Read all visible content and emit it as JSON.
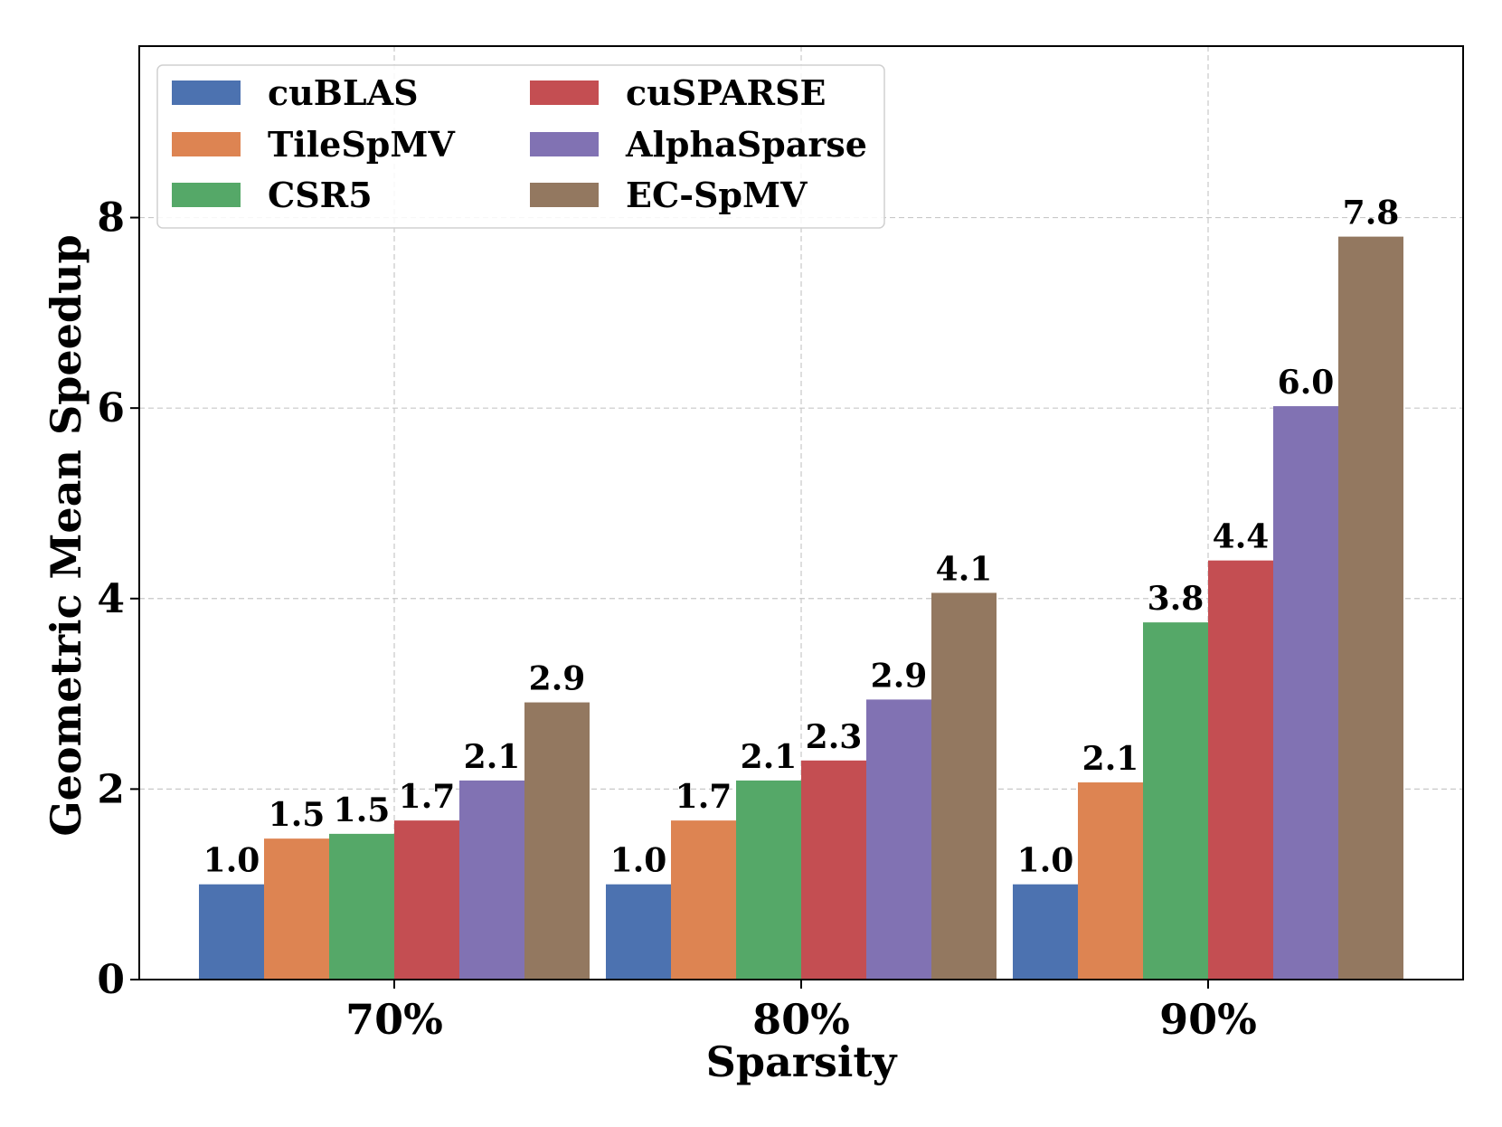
{
  "chart_data": {
    "type": "bar",
    "title": "",
    "xlabel": "Sparsity",
    "ylabel": "Geometric Mean Speedup",
    "categories": [
      "70%",
      "80%",
      "90%"
    ],
    "ylim": [
      0,
      9.8
    ],
    "yticks": [
      0,
      2,
      4,
      6,
      8
    ],
    "grid": true,
    "legend_position": "top-left",
    "legend_columns": 2,
    "series": [
      {
        "name": "cuBLAS",
        "color": "#4c72b0",
        "values": [
          1.0,
          1.0,
          1.0
        ],
        "labels": [
          "1.0",
          "1.0",
          "1.0"
        ]
      },
      {
        "name": "TileSpMV",
        "color": "#dd8452",
        "values": [
          1.48,
          1.67,
          2.07
        ],
        "labels": [
          "1.5",
          "1.7",
          "2.1"
        ]
      },
      {
        "name": "CSR5",
        "color": "#55a868",
        "values": [
          1.53,
          2.09,
          3.75
        ],
        "labels": [
          "1.5",
          "2.1",
          "3.8"
        ]
      },
      {
        "name": "cuSPARSE",
        "color": "#c44e52",
        "values": [
          1.67,
          2.3,
          4.4
        ],
        "labels": [
          "1.7",
          "2.3",
          "4.4"
        ]
      },
      {
        "name": "AlphaSparse",
        "color": "#8172b3",
        "values": [
          2.09,
          2.94,
          6.02
        ],
        "labels": [
          "2.1",
          "2.9",
          "6.0"
        ]
      },
      {
        "name": "EC-SpMV",
        "color": "#937860",
        "values": [
          2.91,
          4.06,
          7.8
        ],
        "labels": [
          "2.9",
          "4.1",
          "7.8"
        ]
      }
    ]
  }
}
